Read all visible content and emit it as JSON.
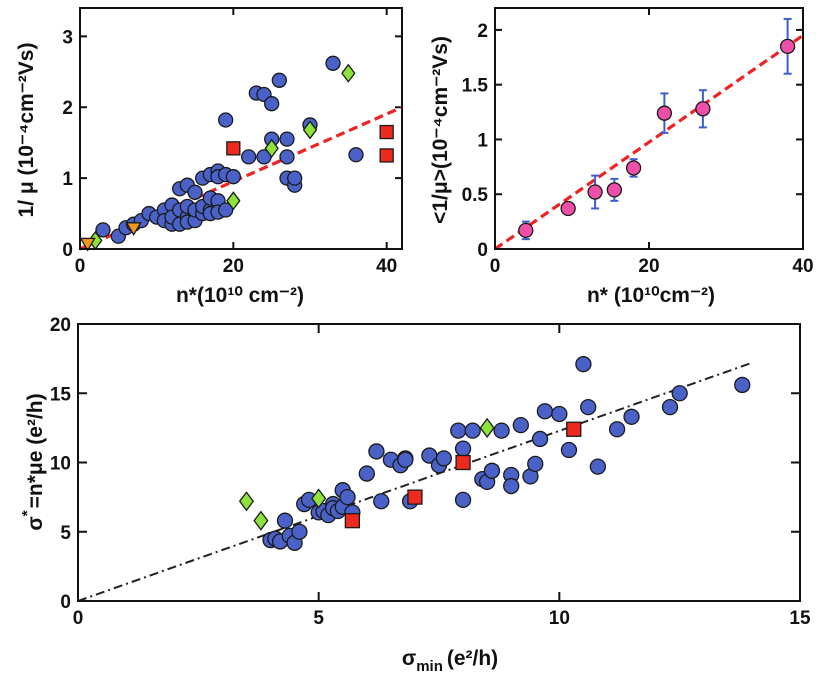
{
  "colors": {
    "blue": "#4a62c8",
    "red": "#ee2a1e",
    "green": "#8fe23a",
    "orange": "#f39a1e",
    "magenta": "#ee4fa8",
    "errorbar": "#3b5fd3",
    "fit_red": "#ee2222",
    "fit_black": "#222222",
    "outline": "#1a1a1a"
  },
  "chart_data": [
    {
      "id": "a",
      "type": "scatter",
      "title": "",
      "xlabel": "n*(10¹⁰ cm⁻²)",
      "ylabel": "1/ μ (10⁻⁴cm⁻²Vs)",
      "xlim": [
        0,
        42
      ],
      "ylim": [
        0,
        3.4
      ],
      "xticks": [
        0,
        20,
        40
      ],
      "yticks": [
        0,
        1,
        2,
        3
      ],
      "grid": false,
      "series": [
        {
          "name": "blue",
          "marker": "circle",
          "color": "blue",
          "x": [
            3,
            5,
            6,
            7,
            8,
            9,
            10,
            11,
            11,
            12,
            12,
            12,
            13,
            13,
            13,
            14,
            14,
            14,
            14,
            15,
            15,
            15,
            16,
            16,
            16,
            17,
            17,
            17,
            17,
            18,
            18,
            18,
            18,
            19,
            19,
            19,
            20,
            22,
            23,
            24,
            24,
            25,
            25,
            26,
            27,
            27,
            27,
            28,
            28,
            30,
            33,
            36
          ],
          "y": [
            0.27,
            0.18,
            0.3,
            0.35,
            0.4,
            0.5,
            0.45,
            0.55,
            0.4,
            0.35,
            0.62,
            0.45,
            0.35,
            0.55,
            0.85,
            0.9,
            0.45,
            0.6,
            0.38,
            0.4,
            0.55,
            0.8,
            0.5,
            0.6,
            1.0,
            0.55,
            0.72,
            1.05,
            0.5,
            1.1,
            0.68,
            0.52,
            1.02,
            0.55,
            1.82,
            1.05,
            1.02,
            1.3,
            2.2,
            2.18,
            1.3,
            2.05,
            1.55,
            2.38,
            1.0,
            1.3,
            1.55,
            0.9,
            1.0,
            1.75,
            2.62,
            1.33
          ]
        },
        {
          "name": "red",
          "marker": "square",
          "color": "red",
          "x": [
            20,
            40,
            40
          ],
          "y": [
            1.42,
            1.65,
            1.32
          ]
        },
        {
          "name": "green",
          "marker": "diamond",
          "color": "green",
          "x": [
            2,
            20,
            25,
            30,
            35
          ],
          "y": [
            0.12,
            0.68,
            1.42,
            1.68,
            2.48
          ]
        },
        {
          "name": "orange",
          "marker": "triangle",
          "color": "orange",
          "x": [
            1,
            7
          ],
          "y": [
            0.08,
            0.3
          ]
        }
      ],
      "fit": {
        "style": "dashed",
        "color": "fit_red",
        "x": [
          0,
          42
        ],
        "y": [
          0.0,
          2.0
        ]
      }
    },
    {
      "id": "b",
      "type": "scatter",
      "title": "",
      "xlabel": "n* (10¹⁰cm⁻²)",
      "ylabel": "<1/μ>(10⁻⁴cm⁻²Vs)",
      "xlim": [
        0,
        40
      ],
      "ylim": [
        0,
        2.2
      ],
      "xticks": [
        0,
        20,
        40
      ],
      "yticks": [
        0,
        0.5,
        1,
        1.5,
        2
      ],
      "grid": false,
      "series": [
        {
          "name": "mean",
          "marker": "circle",
          "color": "magenta",
          "x": [
            4,
            9.5,
            13,
            15.5,
            18,
            22,
            27,
            38
          ],
          "y": [
            0.17,
            0.37,
            0.52,
            0.54,
            0.74,
            1.24,
            1.28,
            1.85
          ],
          "yerr": [
            0.08,
            0.05,
            0.15,
            0.1,
            0.08,
            0.18,
            0.17,
            0.25
          ]
        }
      ],
      "fit": {
        "style": "dashed",
        "color": "fit_red",
        "x": [
          0,
          40
        ],
        "y": [
          0.0,
          1.95
        ]
      }
    },
    {
      "id": "c",
      "type": "scatter",
      "title": "",
      "xlabel": "σmin (e²/h)",
      "ylabel": "σ* = n*μe (e²/h)",
      "xlim": [
        0,
        15
      ],
      "ylim": [
        0,
        20
      ],
      "xticks": [
        0,
        5,
        10,
        15
      ],
      "yticks": [
        0,
        5,
        10,
        15,
        20
      ],
      "grid": false,
      "series": [
        {
          "name": "blue",
          "marker": "circle",
          "color": "blue",
          "x": [
            4.0,
            4.1,
            4.2,
            4.3,
            4.4,
            4.5,
            4.6,
            4.7,
            4.8,
            5.0,
            5.1,
            5.2,
            5.3,
            5.3,
            5.4,
            5.5,
            5.5,
            5.6,
            5.7,
            6.0,
            6.2,
            6.3,
            6.5,
            6.7,
            6.8,
            6.8,
            6.9,
            7.3,
            7.5,
            7.6,
            7.9,
            8.0,
            8.0,
            8.2,
            8.4,
            8.5,
            8.6,
            8.8,
            9.0,
            9.0,
            9.2,
            9.4,
            9.5,
            9.6,
            9.7,
            10.0,
            10.2,
            10.5,
            10.6,
            10.8,
            11.2,
            11.5,
            12.3,
            12.5,
            13.8
          ],
          "y": [
            4.4,
            4.5,
            4.3,
            5.8,
            4.7,
            4.2,
            5.0,
            7.0,
            7.3,
            6.4,
            6.5,
            6.2,
            7.0,
            6.7,
            6.5,
            6.8,
            8.0,
            7.5,
            6.4,
            9.2,
            10.8,
            7.2,
            10.2,
            9.8,
            10.3,
            10.2,
            7.2,
            10.5,
            9.8,
            10.3,
            12.3,
            7.3,
            11.0,
            12.3,
            8.8,
            8.6,
            9.4,
            12.3,
            9.1,
            8.3,
            12.7,
            9.0,
            9.9,
            11.7,
            13.7,
            13.5,
            10.9,
            17.1,
            14.0,
            9.7,
            12.4,
            13.3,
            14.0,
            15.0,
            15.6
          ]
        },
        {
          "name": "red",
          "marker": "square",
          "color": "red",
          "x": [
            5.7,
            7.0,
            8.0,
            10.3
          ],
          "y": [
            5.8,
            7.5,
            10.0,
            12.4
          ]
        },
        {
          "name": "green",
          "marker": "diamond",
          "color": "green",
          "x": [
            3.5,
            3.8,
            5.0,
            8.5
          ],
          "y": [
            7.2,
            5.8,
            7.4,
            12.5
          ]
        }
      ],
      "fit": {
        "style": "dash-dot",
        "color": "fit_black",
        "x": [
          0,
          14
        ],
        "y": [
          0.0,
          17.2
        ]
      }
    }
  ],
  "labels": {
    "a": {
      "ylab": "1/ μ (10⁻⁴cm⁻²Vs)",
      "xlab": "n*(10¹⁰ cm⁻²)"
    },
    "b": {
      "ylab": "<1/μ>(10⁻⁴cm⁻²Vs)",
      "xlab": "n* (10¹⁰cm⁻²)"
    },
    "c": {
      "ylab_sigma": "σ",
      "ylab_star": "*",
      "ylab_rest": "=n*μe (e²/h)",
      "xlab_sigma": "σ",
      "xlab_sub": "min",
      "xlab_rest": "(e²/h)"
    }
  }
}
